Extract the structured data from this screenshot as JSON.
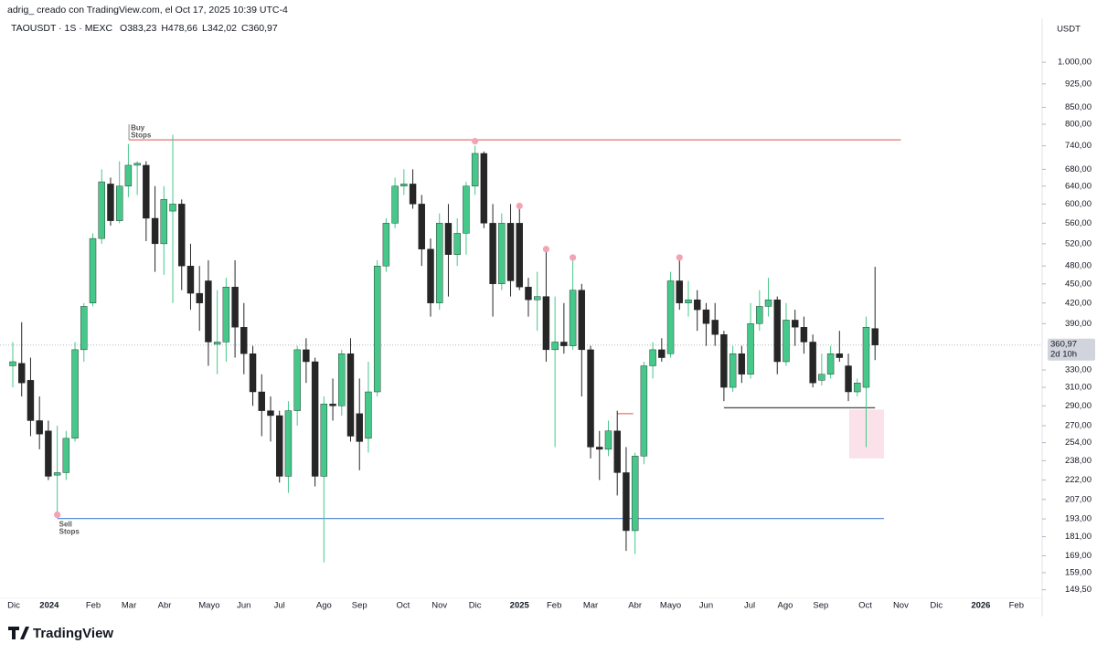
{
  "chart_data": {
    "type": "candlestick",
    "caption": "adrig_ creado con TradingView.com, el Oct 17, 2025 10:39 UTC-4",
    "header": [
      "TAOUSDT · 1S · MEXC",
      "O383,23",
      "H478,66",
      "L342,02",
      "C360,97"
    ],
    "currency": "USDT",
    "brand": "TradingView",
    "log_scale": true,
    "up_color": "#45c88a",
    "down_color": "#262626",
    "ylim": [
      145,
      1097
    ],
    "yticks": [
      {
        "value": 149.5,
        "label": "149,50"
      },
      {
        "value": 159,
        "label": "159,00"
      },
      {
        "value": 169,
        "label": "169,00"
      },
      {
        "value": 181,
        "label": "181,00"
      },
      {
        "value": 193,
        "label": "193,00"
      },
      {
        "value": 207,
        "label": "207,00"
      },
      {
        "value": 222,
        "label": "222,00"
      },
      {
        "value": 238,
        "label": "238,00"
      },
      {
        "value": 254,
        "label": "254,00"
      },
      {
        "value": 270,
        "label": "270,00"
      },
      {
        "value": 290,
        "label": "290,00"
      },
      {
        "value": 310,
        "label": "310,00"
      },
      {
        "value": 330,
        "label": "330,00"
      },
      {
        "value": 390,
        "label": "390,00"
      },
      {
        "value": 420,
        "label": "420,00"
      },
      {
        "value": 450,
        "label": "450,00"
      },
      {
        "value": 480,
        "label": "480,00"
      },
      {
        "value": 520,
        "label": "520,00"
      },
      {
        "value": 560,
        "label": "560,00"
      },
      {
        "value": 600,
        "label": "600,00"
      },
      {
        "value": 640,
        "label": "640,00"
      },
      {
        "value": 680,
        "label": "680,00"
      },
      {
        "value": 740,
        "label": "740,00"
      },
      {
        "value": 800,
        "label": "800,00"
      },
      {
        "value": 850,
        "label": "850,00"
      },
      {
        "value": 925,
        "label": "925,00"
      },
      {
        "value": 1000,
        "label": "1.000,00"
      }
    ],
    "xlim": [
      -1.44,
      115.8
    ],
    "xticks": [
      {
        "value": 0.1,
        "label": "Dic"
      },
      {
        "value": 4.1,
        "label": "2024"
      },
      {
        "value": 9.05,
        "label": "Feb"
      },
      {
        "value": 13.07,
        "label": "Mar"
      },
      {
        "value": 17.08,
        "label": "Abr"
      },
      {
        "value": 22.1,
        "label": "Mayo"
      },
      {
        "value": 26,
        "label": "Jun"
      },
      {
        "value": 30,
        "label": "Jul"
      },
      {
        "value": 35,
        "label": "Ago"
      },
      {
        "value": 39,
        "label": "Sep"
      },
      {
        "value": 43.9,
        "label": "Oct"
      },
      {
        "value": 48,
        "label": "Nov"
      },
      {
        "value": 52,
        "label": "Dic"
      },
      {
        "value": 57,
        "label": "2025"
      },
      {
        "value": 60.9,
        "label": "Feb"
      },
      {
        "value": 65,
        "label": "Mar"
      },
      {
        "value": 70,
        "label": "Abr"
      },
      {
        "value": 74,
        "label": "Mayo"
      },
      {
        "value": 78,
        "label": "Jun"
      },
      {
        "value": 82.9,
        "label": "Jul"
      },
      {
        "value": 86.9,
        "label": "Ago"
      },
      {
        "value": 90.9,
        "label": "Sep"
      },
      {
        "value": 95.9,
        "label": "Oct"
      },
      {
        "value": 99.9,
        "label": "Nov"
      },
      {
        "value": 103.9,
        "label": "Dic"
      },
      {
        "value": 108.9,
        "label": "2026"
      },
      {
        "value": 112.9,
        "label": "Feb"
      }
    ],
    "open": [
      335,
      338,
      318,
      275,
      265,
      226,
      228,
      258,
      355,
      420,
      530,
      645,
      565,
      640,
      690,
      690,
      570,
      520,
      585,
      600,
      480,
      435,
      455,
      362,
      365,
      445,
      385,
      350,
      305,
      285,
      280,
      225,
      285,
      355,
      340,
      225,
      292,
      290,
      350,
      282,
      258,
      305,
      480,
      560,
      640,
      645,
      600,
      510,
      420,
      560,
      500,
      540,
      640,
      720,
      560,
      450,
      560,
      560,
      445,
      425,
      430,
      355,
      365,
      360,
      440,
      355,
      250,
      248,
      265,
      228,
      185,
      242,
      335,
      355,
      350,
      455,
      420,
      425,
      410,
      395,
      375,
      310,
      350,
      325,
      390,
      415,
      425,
      340,
      395,
      385,
      365,
      318,
      325,
      350,
      335,
      305,
      310,
      383.23
    ],
    "high": [
      365,
      392,
      345,
      300,
      275,
      270,
      265,
      365,
      420,
      540,
      680,
      660,
      700,
      745,
      700,
      700,
      640,
      640,
      770,
      610,
      520,
      480,
      490,
      440,
      460,
      490,
      420,
      360,
      325,
      300,
      285,
      295,
      360,
      370,
      345,
      300,
      320,
      355,
      370,
      320,
      340,
      490,
      570,
      660,
      680,
      680,
      620,
      530,
      580,
      600,
      570,
      650,
      740,
      725,
      600,
      580,
      600,
      590,
      460,
      470,
      505,
      430,
      420,
      495,
      450,
      360,
      265,
      275,
      285,
      250,
      245,
      340,
      365,
      370,
      470,
      490,
      455,
      440,
      420,
      420,
      380,
      360,
      360,
      420,
      440,
      460,
      430,
      420,
      410,
      400,
      375,
      350,
      360,
      380,
      350,
      320,
      400,
      478.66
    ],
    "low": [
      310,
      300,
      260,
      248,
      222,
      195,
      222,
      255,
      340,
      415,
      520,
      555,
      560,
      615,
      620,
      525,
      470,
      465,
      420,
      440,
      410,
      380,
      335,
      325,
      340,
      345,
      325,
      290,
      260,
      255,
      220,
      212,
      270,
      315,
      217,
      165,
      275,
      280,
      255,
      230,
      245,
      300,
      470,
      550,
      620,
      590,
      480,
      400,
      410,
      430,
      480,
      500,
      620,
      550,
      400,
      440,
      430,
      440,
      400,
      380,
      340,
      250,
      350,
      355,
      300,
      240,
      222,
      242,
      210,
      172,
      170,
      235,
      320,
      340,
      345,
      410,
      400,
      380,
      360,
      360,
      295,
      305,
      315,
      320,
      380,
      400,
      325,
      335,
      360,
      350,
      310,
      312,
      320,
      340,
      295,
      300,
      250,
      342.02
    ],
    "close": [
      340,
      315,
      275,
      262,
      225,
      228,
      258,
      355,
      415,
      530,
      650,
      565,
      640,
      690,
      695,
      570,
      520,
      610,
      600,
      480,
      435,
      420,
      365,
      365,
      445,
      385,
      350,
      305,
      285,
      280,
      225,
      285,
      355,
      340,
      225,
      292,
      290,
      350,
      260,
      255,
      305,
      480,
      560,
      640,
      645,
      600,
      510,
      420,
      560,
      500,
      540,
      640,
      720,
      560,
      450,
      560,
      455,
      445,
      425,
      430,
      355,
      365,
      360,
      440,
      355,
      250,
      248,
      265,
      228,
      185,
      242,
      335,
      355,
      345,
      455,
      420,
      425,
      410,
      390,
      375,
      310,
      350,
      325,
      390,
      415,
      425,
      340,
      395,
      385,
      365,
      315,
      325,
      350,
      345,
      305,
      315,
      385,
      360.97
    ],
    "last_price": {
      "value": 360.97,
      "label": "360,97"
    },
    "countdown": "2d 10h",
    "lines": [
      {
        "price": 756,
        "x0": 13.07,
        "x1": 99.9,
        "color": "#e57373",
        "label": [
          "Buy",
          "Stops"
        ]
      },
      {
        "price": 193.3,
        "x0": 5,
        "x1": 98,
        "color": "#5b8fd6",
        "label": [
          "Sell",
          "Stops"
        ]
      },
      {
        "price": 288,
        "x0": 80,
        "x1": 97,
        "color": "#555555"
      },
      {
        "price": 282,
        "x0": 68,
        "x1": 69.8,
        "color": "#e57373"
      }
    ],
    "zone": {
      "x0": 94.1,
      "x1": 98,
      "top": 286,
      "bottom": 240,
      "color": "#f8d7e3"
    },
    "markers": {
      "x": [
        5,
        52,
        57,
        60,
        63,
        75
      ],
      "price": [
        194,
        745,
        590,
        505,
        490,
        490
      ],
      "color": "#f4a3b5"
    }
  }
}
